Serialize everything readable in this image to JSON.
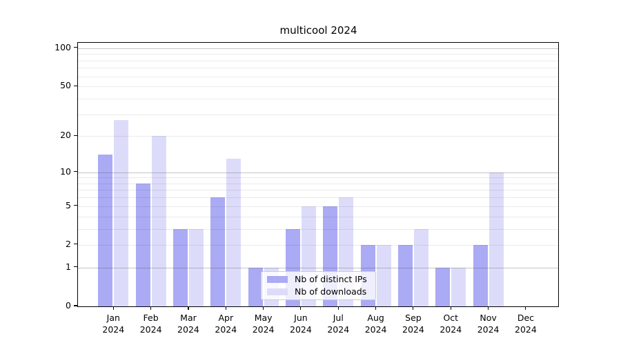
{
  "title": "multicool 2024",
  "colors": {
    "background": "#ffffff",
    "spine": "#000000",
    "distinct_ips_bar": "#aaaaf5",
    "downloads_bar": "#dcdcfa",
    "major_gridline": "#b0b0b0",
    "minor_gridline": "#ebebeb",
    "legend_border": "#cccccc"
  },
  "chart_data": {
    "type": "bar",
    "title": "multicool 2024",
    "categories": [
      "Jan 2024",
      "Feb 2024",
      "Mar 2024",
      "Apr 2024",
      "May 2024",
      "Jun 2024",
      "Jul 2024",
      "Aug 2024",
      "Sep 2024",
      "Oct 2024",
      "Nov 2024",
      "Dec 2024"
    ],
    "series": [
      {
        "name": "Nb of distinct IPs",
        "color": "#aaaaf5",
        "values": [
          14,
          8,
          3,
          6,
          1,
          3,
          5,
          2,
          2,
          1,
          2,
          0
        ]
      },
      {
        "name": "Nb of downloads",
        "color": "#dcdcfa",
        "values": [
          27,
          20,
          3,
          13,
          1,
          5,
          6,
          2,
          3,
          1,
          10,
          0
        ]
      }
    ],
    "xlabel": "",
    "ylabel": "",
    "y_axis": {
      "scale": "log1p",
      "tick_values": [
        0,
        1,
        2,
        5,
        10,
        20,
        50,
        100
      ],
      "tick_labels": [
        "0",
        "1",
        "2",
        "5",
        "10",
        "20",
        "50",
        "100"
      ],
      "major_gridlines": [
        1,
        10,
        100
      ],
      "minor_gridlines": [
        2,
        3,
        4,
        5,
        6,
        7,
        8,
        9,
        20,
        30,
        40,
        50,
        60,
        70,
        80,
        90
      ],
      "ylim": [
        0,
        110
      ]
    },
    "grid": "on",
    "legend": {
      "position": "lower center, inside plot",
      "entries": [
        "Nb of distinct IPs",
        "Nb of downloads"
      ]
    }
  }
}
